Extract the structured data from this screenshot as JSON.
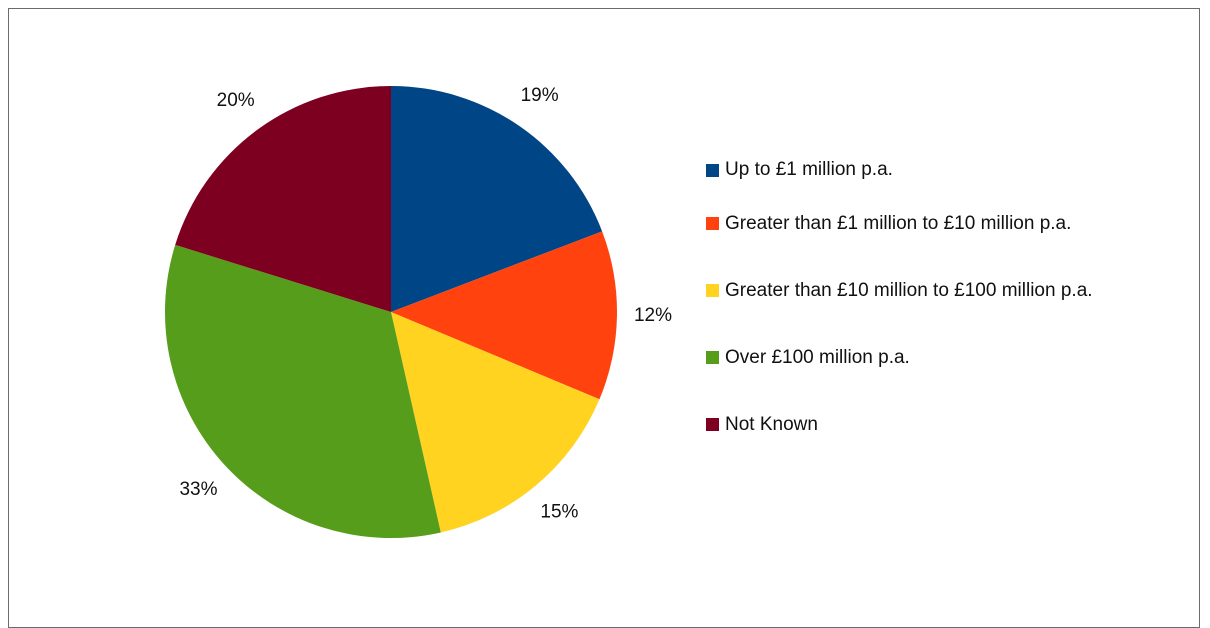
{
  "chart_data": {
    "type": "pie",
    "title": "",
    "start_angle_deg": 0,
    "direction": "clockwise",
    "legend_position": "right",
    "slices": [
      {
        "label": "Up to £1 million p.a.",
        "value": 19,
        "display": "19%",
        "color": "#004586"
      },
      {
        "label": "Greater than £1 million to £10 million p.a.",
        "value": 12,
        "display": "12%",
        "color": "#ff420e"
      },
      {
        "label": "Greater than £10 million to £100 million p.a.",
        "value": 15,
        "display": "15%",
        "color": "#ffd320"
      },
      {
        "label": "Over £100 million p.a.",
        "value": 33,
        "display": "33%",
        "color": "#579d1c"
      },
      {
        "label": "Not Known",
        "value": 20,
        "display": "20%",
        "color": "#7e0021"
      }
    ]
  }
}
